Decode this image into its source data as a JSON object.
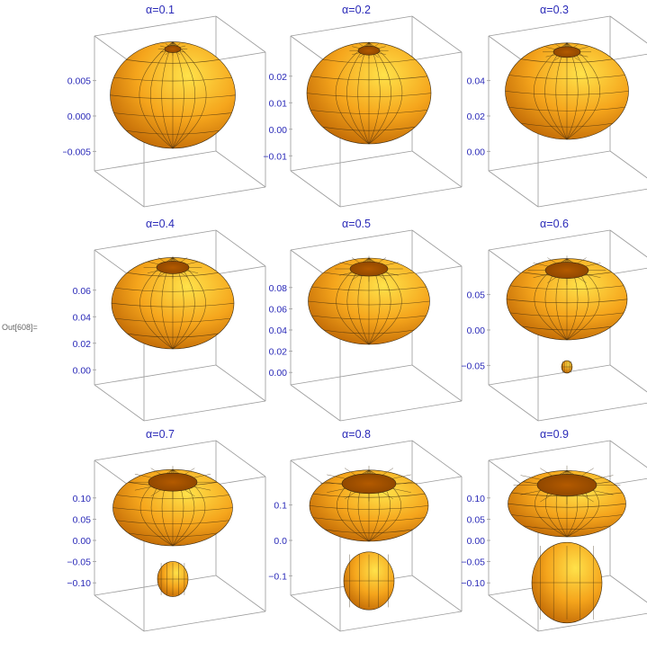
{
  "output_label": "Out[608]=",
  "colors": {
    "surface_light": "#ffe24a",
    "surface_mid": "#f5a51c",
    "surface_dark": "#b35a00",
    "mesh": "#3b2a10",
    "box": "#9a9a9a",
    "ticks": "#2a2ab8"
  },
  "chart_data": [
    {
      "type": "3d-surface",
      "title": "α=0.1",
      "z_ticks": [
        "0.005",
        "0.000",
        "−0.005"
      ],
      "alpha": 0.1
    },
    {
      "type": "3d-surface",
      "title": "α=0.2",
      "z_ticks": [
        "0.02",
        "0.01",
        "0.00",
        "−0.01"
      ],
      "alpha": 0.2
    },
    {
      "type": "3d-surface",
      "title": "α=0.3",
      "z_ticks": [
        "0.04",
        "0.02",
        "0.00"
      ],
      "alpha": 0.3
    },
    {
      "type": "3d-surface",
      "title": "α=0.4",
      "z_ticks": [
        "0.06",
        "0.04",
        "0.02",
        "0.00"
      ],
      "alpha": 0.4
    },
    {
      "type": "3d-surface",
      "title": "α=0.5",
      "z_ticks": [
        "0.08",
        "0.06",
        "0.04",
        "0.02",
        "0.00"
      ],
      "alpha": 0.5
    },
    {
      "type": "3d-surface",
      "title": "α=0.6",
      "z_ticks": [
        "0.05",
        "0.00",
        "−0.05"
      ],
      "alpha": 0.6
    },
    {
      "type": "3d-surface",
      "title": "α=0.7",
      "z_ticks": [
        "0.10",
        "0.05",
        "0.00",
        "−0.05",
        "−0.10"
      ],
      "alpha": 0.7
    },
    {
      "type": "3d-surface",
      "title": "α=0.8",
      "z_ticks": [
        "0.1",
        "0.0",
        "−0.1"
      ],
      "alpha": 0.8
    },
    {
      "type": "3d-surface",
      "title": "α=0.9",
      "z_ticks": [
        "0.10",
        "0.05",
        "0.00",
        "−0.05",
        "−0.10"
      ],
      "alpha": 0.9
    }
  ]
}
